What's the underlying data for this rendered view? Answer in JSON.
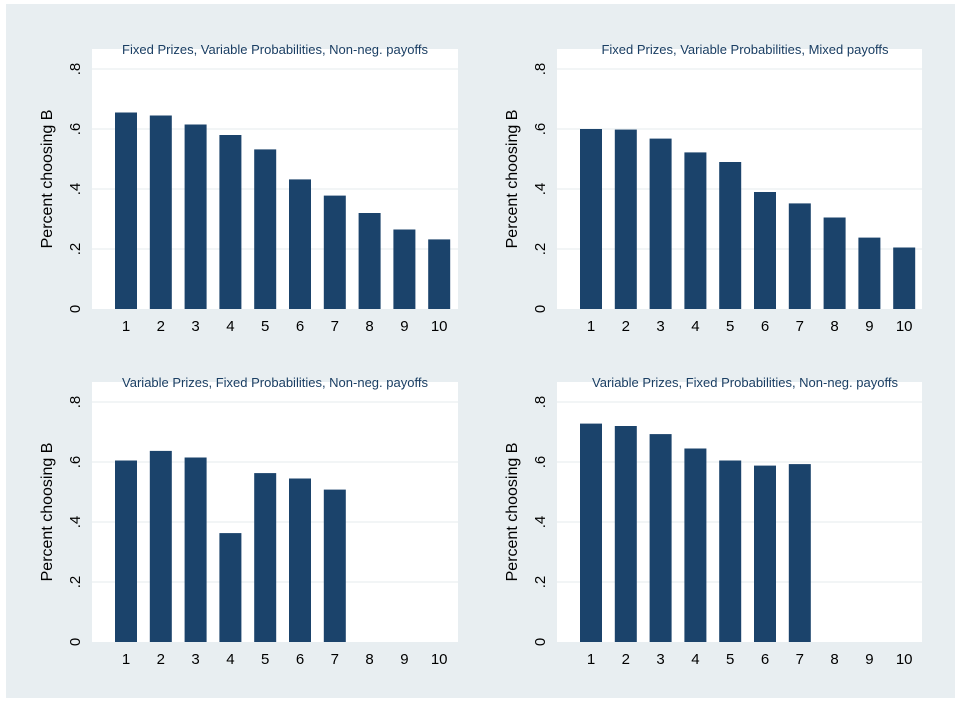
{
  "style": {
    "figure_background": "#e8eef1",
    "plot_background": "#ffffff",
    "bar_color": "#1b436b",
    "grid_color": "#e6ebee",
    "title_color": "#1a3e63"
  },
  "chart_data": [
    {
      "type": "bar",
      "title": "Fixed Prizes, Variable Probabilities, Non-neg. payoffs",
      "xlabel": "",
      "ylabel": "Percent choosing B",
      "categories": [
        "1",
        "2",
        "3",
        "4",
        "5",
        "6",
        "7",
        "8",
        "9",
        "10"
      ],
      "values": [
        0.655,
        0.645,
        0.615,
        0.58,
        0.532,
        0.432,
        0.378,
        0.32,
        0.265,
        0.232
      ],
      "ylim": [
        0,
        0.8
      ],
      "yticks": [
        0,
        0.2,
        0.4,
        0.6,
        0.8
      ],
      "ytick_labels": [
        "0",
        ".2",
        ".4",
        ".6",
        ".8"
      ],
      "grid": true
    },
    {
      "type": "bar",
      "title": "Fixed Prizes, Variable Probabilities, Mixed payoffs",
      "xlabel": "",
      "ylabel": "Percent choosing B",
      "categories": [
        "1",
        "2",
        "3",
        "4",
        "5",
        "6",
        "7",
        "8",
        "9",
        "10"
      ],
      "values": [
        0.6,
        0.598,
        0.568,
        0.522,
        0.49,
        0.39,
        0.352,
        0.305,
        0.238,
        0.205
      ],
      "ylim": [
        0,
        0.8
      ],
      "yticks": [
        0,
        0.2,
        0.4,
        0.6,
        0.8
      ],
      "ytick_labels": [
        "0",
        ".2",
        ".4",
        ".6",
        ".8"
      ],
      "grid": true
    },
    {
      "type": "bar",
      "title": "Variable Prizes, Fixed Probabilities, Non-neg. payoffs",
      "xlabel": "",
      "ylabel": "Percent choosing B",
      "categories": [
        "1",
        "2",
        "3",
        "4",
        "5",
        "6",
        "7",
        "8",
        "9",
        "10"
      ],
      "values": [
        0.605,
        0.637,
        0.615,
        0.363,
        0.563,
        0.545,
        0.508,
        null,
        null,
        null
      ],
      "ylim": [
        0,
        0.8
      ],
      "yticks": [
        0,
        0.2,
        0.4,
        0.6,
        0.8
      ],
      "ytick_labels": [
        "0",
        ".2",
        ".4",
        ".6",
        ".8"
      ],
      "grid": true
    },
    {
      "type": "bar",
      "title": "Variable Prizes, Fixed Probabilities, Non-neg. payoffs",
      "xlabel": "",
      "ylabel": "Percent choosing B",
      "categories": [
        "1",
        "2",
        "3",
        "4",
        "5",
        "6",
        "7",
        "8",
        "9",
        "10"
      ],
      "values": [
        0.728,
        0.72,
        0.693,
        0.645,
        0.605,
        0.588,
        0.593,
        null,
        null,
        null
      ],
      "ylim": [
        0,
        0.8
      ],
      "yticks": [
        0,
        0.2,
        0.4,
        0.6,
        0.8
      ],
      "ytick_labels": [
        "0",
        ".2",
        ".4",
        ".6",
        ".8"
      ],
      "grid": true
    }
  ]
}
